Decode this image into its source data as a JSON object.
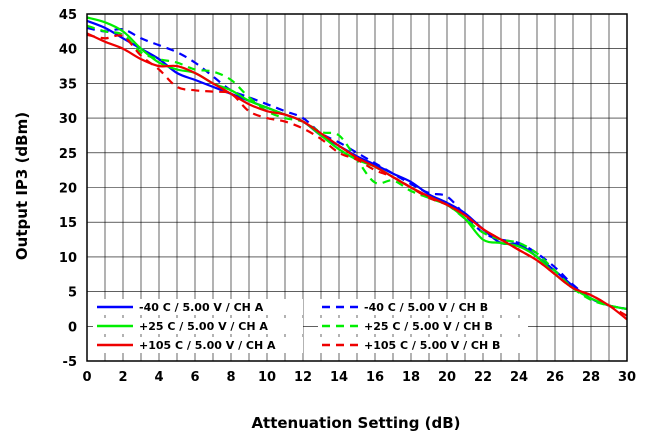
{
  "chart_data": {
    "type": "line",
    "title": "",
    "xlabel": "Attenuation Setting (dB)",
    "ylabel": "Output IP3 (dBm)",
    "xlim": [
      0,
      30
    ],
    "ylim": [
      -5,
      45
    ],
    "xticks": [
      0,
      2,
      4,
      6,
      8,
      10,
      12,
      14,
      16,
      18,
      20,
      22,
      24,
      26,
      28,
      30
    ],
    "yticks": [
      -5,
      0,
      5,
      10,
      15,
      20,
      25,
      30,
      35,
      40,
      45
    ],
    "grid": true,
    "minor_x_grid_step": 1,
    "legend_position": "bottom-left",
    "series": [
      {
        "name": "-40 C  / 5.00 V / CH A",
        "color": "#0000ff",
        "dash": "solid",
        "x": [
          0,
          1,
          2,
          3,
          4,
          5,
          6,
          7,
          8,
          9,
          10,
          11,
          12,
          13,
          14,
          15,
          16,
          17,
          18,
          19,
          20,
          21,
          22,
          23,
          24,
          25,
          26,
          27,
          28,
          29,
          30
        ],
        "y": [
          44,
          43,
          41.5,
          40,
          38.5,
          36.5,
          35.5,
          34.5,
          33.5,
          32.5,
          31.5,
          30.5,
          29.5,
          27.5,
          26,
          24.5,
          23.3,
          22,
          20.8,
          19,
          17.8,
          16.3,
          14,
          12,
          11.8,
          10,
          8,
          5.8,
          4,
          3,
          2.5
        ]
      },
      {
        "name": "-40 C  / 5.00 V / CH B",
        "color": "#0000ff",
        "dash": "dashed",
        "x": [
          0,
          1,
          2,
          3,
          4,
          5,
          6,
          7,
          8,
          9,
          10,
          11,
          12,
          13,
          14,
          15,
          16,
          17,
          18,
          19,
          20,
          21,
          22,
          23,
          24,
          25,
          26,
          27,
          28,
          29,
          30
        ],
        "y": [
          43,
          42.5,
          42.8,
          41.5,
          40.5,
          39.5,
          38,
          36,
          34,
          33,
          32,
          31,
          30,
          27.8,
          26.5,
          25,
          23.5,
          22,
          20.5,
          19.2,
          18.7,
          16,
          13.5,
          12.5,
          12,
          10.5,
          8.5,
          6,
          4,
          3,
          2.5
        ]
      },
      {
        "name": "+25 C  / 5.00 V / CH A",
        "color": "#00ee00",
        "dash": "solid",
        "x": [
          0,
          1,
          2,
          3,
          4,
          5,
          6,
          7,
          8,
          9,
          10,
          11,
          12,
          13,
          14,
          15,
          16,
          17,
          18,
          19,
          20,
          21,
          22,
          23,
          24,
          25,
          26,
          27,
          28,
          29,
          30
        ],
        "y": [
          44.5,
          43.8,
          42.5,
          40,
          38,
          37,
          36.5,
          35,
          34,
          32.5,
          31.5,
          30.5,
          29.5,
          27.5,
          25.5,
          24,
          23,
          21.5,
          20,
          18.5,
          17.5,
          15.5,
          12.5,
          12,
          11.5,
          10,
          7.5,
          5.5,
          4,
          3,
          2.5
        ]
      },
      {
        "name": "+25 C  / 5.00 V / CH B",
        "color": "#00ee00",
        "dash": "dashed",
        "x": [
          0,
          1,
          2,
          3,
          4,
          5,
          6,
          7,
          8,
          9,
          10,
          11,
          12,
          13,
          14,
          15,
          16,
          17,
          18,
          19,
          20,
          21,
          22,
          23,
          24,
          25,
          26,
          27,
          28,
          29,
          30
        ],
        "y": [
          43.3,
          42.5,
          42,
          39.5,
          38.5,
          38,
          37,
          36.7,
          35.5,
          33,
          31,
          30,
          29.5,
          28,
          27.5,
          24,
          20.7,
          21,
          19.5,
          18.5,
          17.5,
          15.5,
          13.5,
          12.5,
          12,
          10.5,
          8,
          5.5,
          3.8,
          3,
          2.5
        ]
      },
      {
        "name": "+105 C  / 5.00 V / CH A",
        "color": "#ee0000",
        "dash": "solid",
        "x": [
          0,
          1,
          2,
          3,
          4,
          5,
          6,
          7,
          8,
          9,
          10,
          11,
          12,
          13,
          14,
          15,
          16,
          17,
          18,
          19,
          20,
          21,
          22,
          23,
          24,
          25,
          26,
          27,
          28,
          29,
          30
        ],
        "y": [
          42.2,
          41,
          40,
          38.5,
          37.5,
          37.5,
          36.5,
          35,
          33.5,
          32,
          31,
          30.5,
          29.5,
          27.8,
          26,
          24.3,
          23,
          21.5,
          20,
          18.7,
          17.5,
          16,
          14,
          12.5,
          11,
          9.5,
          7.5,
          5.5,
          4.5,
          3,
          1
        ]
      },
      {
        "name": "+105 C  / 5.00 V / CH B",
        "color": "#ee0000",
        "dash": "dashed",
        "x": [
          0,
          1,
          2,
          3,
          4,
          5,
          6,
          7,
          8,
          9,
          10,
          11,
          12,
          13,
          14,
          15,
          16,
          17,
          18,
          19,
          20,
          21,
          22,
          23,
          24,
          25,
          26,
          27,
          28,
          29,
          30
        ],
        "y": [
          42,
          41.5,
          41.8,
          39,
          37,
          34.5,
          34,
          33.8,
          33.5,
          31,
          30,
          29.5,
          28.5,
          27,
          25,
          24,
          22.5,
          21.5,
          20,
          18.5,
          17.5,
          16,
          14,
          12.5,
          11,
          9.5,
          7.5,
          5.5,
          4.5,
          3,
          1.5
        ]
      }
    ]
  }
}
